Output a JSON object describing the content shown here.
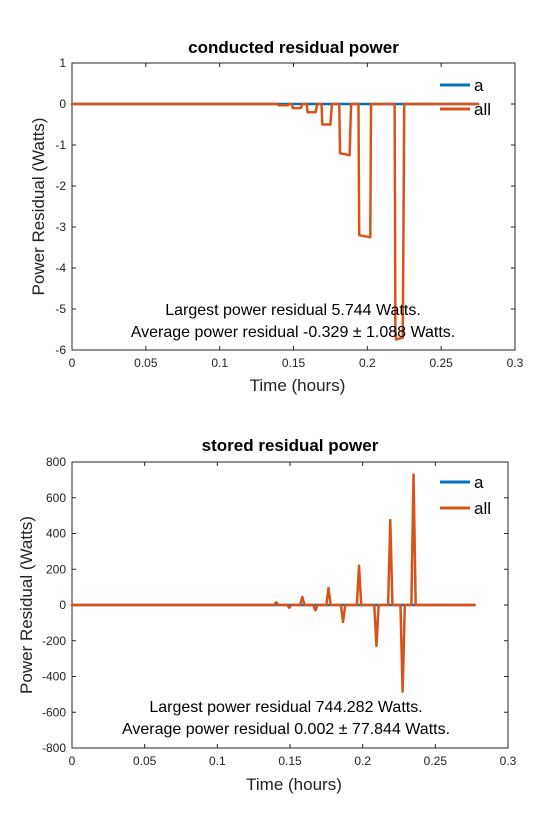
{
  "colors": {
    "series_a": "#0072BD",
    "series_all": "#D95319",
    "axis": "#262626"
  },
  "chart_data": [
    {
      "type": "line",
      "title": "conducted residual power",
      "xlabel": "Time (hours)",
      "ylabel": "Power Residual (Watts)",
      "xlim": [
        0,
        0.3
      ],
      "ylim": [
        -6,
        1
      ],
      "xticks": [
        0,
        0.05,
        0.1,
        0.15,
        0.2,
        0.25,
        0.3
      ],
      "xtick_labels": [
        "0",
        "0.05",
        "0.1",
        "0.15",
        "0.2",
        "0.25",
        "0.3"
      ],
      "yticks": [
        -6,
        -5,
        -4,
        -3,
        -2,
        -1,
        0,
        1
      ],
      "ytick_labels": [
        "-6",
        "-5",
        "-4",
        "-3",
        "-2",
        "-1",
        "0",
        "1"
      ],
      "legend": {
        "position": "top-right",
        "entries": [
          "a",
          "all"
        ]
      },
      "annotations": [
        "Largest power residual 5.744 Watts.",
        "Average power residual -0.329 ± 1.088 Watts."
      ],
      "series": [
        {
          "name": "a",
          "x": [
            0,
            0.275
          ],
          "y": [
            0,
            0
          ]
        },
        {
          "name": "all",
          "x": [
            0,
            0.139,
            0.14,
            0.146,
            0.147,
            0.149,
            0.1495,
            0.155,
            0.156,
            0.159,
            0.1595,
            0.165,
            0.166,
            0.169,
            0.1695,
            0.175,
            0.176,
            0.181,
            0.1815,
            0.188,
            0.189,
            0.194,
            0.1945,
            0.202,
            0.2025,
            0.208,
            0.209,
            0.2095,
            0.2185,
            0.219,
            0.2195,
            0.224,
            0.225,
            0.2265,
            0.2305,
            0.2315,
            0.2325,
            0.233,
            0.275
          ],
          "y": [
            0,
            0,
            -0.03,
            -0.03,
            0,
            0,
            -0.1,
            -0.1,
            0,
            0,
            -0.2,
            -0.2,
            0,
            0,
            -0.5,
            -0.5,
            0,
            0,
            -1.2,
            -1.25,
            0,
            0,
            -3.2,
            -3.25,
            0,
            0,
            -0.01,
            0,
            0,
            -5.5,
            -5.744,
            -5.7,
            0,
            0,
            0,
            0,
            0,
            0,
            0
          ]
        }
      ]
    },
    {
      "type": "line",
      "title": "stored residual power",
      "xlabel": "Time (hours)",
      "ylabel": "Power Residual (Watts)",
      "xlim": [
        0,
        0.3
      ],
      "ylim": [
        -800,
        800
      ],
      "xticks": [
        0,
        0.05,
        0.1,
        0.15,
        0.2,
        0.25,
        0.3
      ],
      "xtick_labels": [
        "0",
        "0.05",
        "0.1",
        "0.15",
        "0.2",
        "0.25",
        "0.3"
      ],
      "yticks": [
        -800,
        -600,
        -400,
        -200,
        0,
        200,
        400,
        600,
        800
      ],
      "ytick_labels": [
        "-800",
        "-600",
        "-400",
        "-200",
        "0",
        "200",
        "400",
        "600",
        "800"
      ],
      "legend": {
        "position": "top-right",
        "entries": [
          "a",
          "all"
        ]
      },
      "annotations": [
        "Largest power residual 744.282 Watts.",
        "Average power residual 0.002 ± 77.844 Watts."
      ],
      "series": [
        {
          "name": "a",
          "x": [
            0,
            0.277
          ],
          "y": [
            0,
            0
          ]
        },
        {
          "name": "all",
          "x": [
            0,
            0.139,
            0.1405,
            0.142,
            0.148,
            0.1495,
            0.151,
            0.157,
            0.1585,
            0.16,
            0.166,
            0.1675,
            0.169,
            0.175,
            0.1765,
            0.178,
            0.185,
            0.1865,
            0.188,
            0.196,
            0.1975,
            0.199,
            0.208,
            0.2095,
            0.211,
            0.2175,
            0.219,
            0.2205,
            0.226,
            0.2275,
            0.229,
            0.2335,
            0.235,
            0.2365,
            0.277
          ],
          "y": [
            0,
            0,
            15,
            0,
            0,
            -15,
            0,
            0,
            45,
            0,
            0,
            -30,
            0,
            0,
            95,
            0,
            0,
            -95,
            0,
            0,
            220,
            0,
            0,
            -230,
            0,
            0,
            475,
            0,
            0,
            -485,
            0,
            0,
            730,
            0,
            0
          ]
        }
      ]
    }
  ]
}
